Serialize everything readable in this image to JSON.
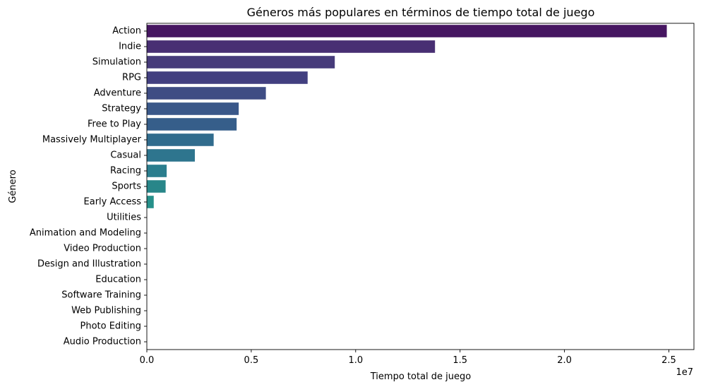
{
  "chart_data": {
    "type": "bar",
    "orientation": "horizontal",
    "title": "Géneros más populares en términos de tiempo total de juego",
    "xlabel": "Tiempo total de juego",
    "ylabel": "Género",
    "x_scale_label": "1e7",
    "xlim": [
      0,
      2.62
    ],
    "x_unit_multiplier": 10000000,
    "x_ticks": [
      0.0,
      0.5,
      1.0,
      1.5,
      2.0,
      2.5
    ],
    "x_tick_labels": [
      "0.0",
      "0.5",
      "1.0",
      "1.5",
      "2.0",
      "2.5"
    ],
    "grid": false,
    "palette": "viridis",
    "categories": [
      "Action",
      "Indie",
      "Simulation",
      "RPG",
      "Adventure",
      "Strategy",
      "Free to Play",
      "Massively Multiplayer",
      "Casual",
      "Racing",
      "Sports",
      "Early Access",
      "Utilities",
      "Animation and Modeling",
      "Video Production",
      "Design and Illustration",
      "Education",
      "Software Training",
      "Web Publishing",
      "Photo Editing",
      "Audio Production"
    ],
    "values": [
      2.49,
      1.38,
      0.9,
      0.77,
      0.57,
      0.44,
      0.43,
      0.32,
      0.23,
      0.095,
      0.09,
      0.033,
      0.0,
      0.0,
      0.0,
      0.0,
      0.0,
      0.0,
      0.0,
      0.0,
      0.0
    ],
    "colors": [
      "#461661",
      "#482f73",
      "#463b7a",
      "#423f80",
      "#3f4d84",
      "#3a5889",
      "#365e8a",
      "#316c8d",
      "#2e758e",
      "#2b7e8e",
      "#288689",
      "#26908a",
      "#21a685",
      "#2db27c",
      "#44be70",
      "#63c861",
      "#84d24a",
      "#aadc32",
      "#c8e021",
      "#e0e318",
      "#f5e61e"
    ]
  }
}
